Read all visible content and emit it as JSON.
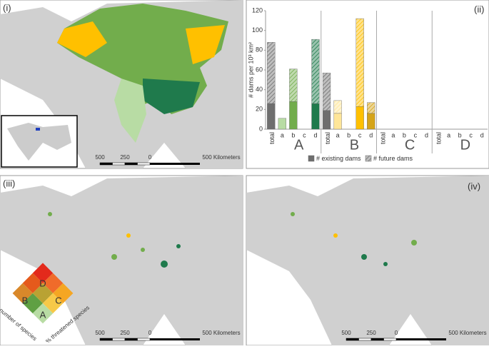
{
  "chart_data": {
    "type": "bar",
    "stacked": true,
    "y_label": "# dams per 10³ km²",
    "ylim": [
      0,
      120
    ],
    "yticks": [
      0,
      20,
      40,
      60,
      80,
      100,
      120
    ],
    "groups": [
      "A",
      "B",
      "C",
      "D"
    ],
    "categories": [
      "total",
      "a",
      "b",
      "c",
      "d",
      "total",
      "a",
      "b",
      "c",
      "d",
      "total",
      "a",
      "b",
      "c",
      "d",
      "total",
      "a",
      "b",
      "c",
      "d"
    ],
    "bar_colors": [
      "#6e6e6e",
      "#b8dca4",
      "#72ad4c",
      "#72ad4c",
      "#1f7a4c",
      "#6e6e6e",
      "#ffe699",
      "#ffc000",
      "#ffc000",
      "#d5a419",
      "#6e6e6e",
      "#b8dca4",
      "#72ad4c",
      "#72ad4c",
      "#1f7a4c",
      "#6e6e6e",
      "#ffe699",
      "#ffc000",
      "#ffc000",
      "#d5a419"
    ],
    "series": [
      {
        "name": "# existing dams",
        "color": "#6e6e6e",
        "pattern": "solid",
        "values": [
          26,
          11,
          28,
          0,
          26,
          19,
          16,
          0,
          23,
          16,
          0,
          0,
          0,
          0,
          0,
          0,
          0,
          0,
          0,
          0
        ]
      },
      {
        "name": "# future dams",
        "color": "#6e6e6e",
        "pattern": "hatch",
        "values": [
          62,
          0,
          33,
          0,
          65,
          38,
          13,
          0,
          89,
          11,
          0,
          0,
          0,
          0,
          0,
          0,
          0,
          0,
          0,
          0
        ]
      }
    ],
    "panel_label": "(ii)"
  },
  "panels": {
    "i": {
      "label": "(i)",
      "scale": [
        "500",
        "250",
        "0",
        "500 Kilometers"
      ]
    },
    "iii": {
      "label": "(iii)",
      "scale": [
        "500",
        "250",
        "0",
        "500 Kilometers"
      ],
      "legend": [
        "A",
        "B",
        "C",
        "D"
      ],
      "legend_axes": [
        "number of species",
        "% threatened species"
      ]
    },
    "iv": {
      "label": "(iv)",
      "scale": [
        "500",
        "250",
        "0",
        "500 Kilometers"
      ]
    }
  }
}
